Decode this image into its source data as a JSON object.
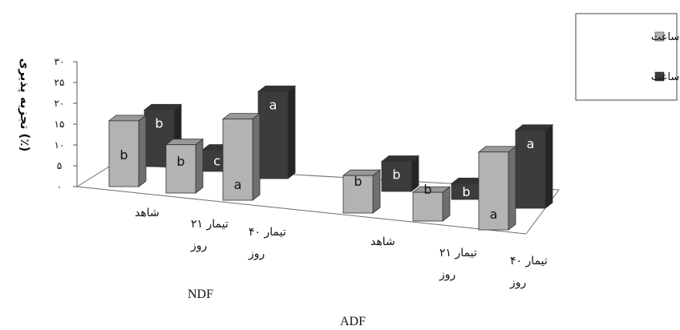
{
  "chart_data": {
    "type": "bar",
    "ylabel": "تجزیه پذیری (٪)",
    "ylim": [
      0,
      30
    ],
    "yticks": [
      "۰",
      "۵",
      "۱۰",
      "۱۵",
      "۲۰",
      "۲۵",
      "۳۰"
    ],
    "ytick_values": [
      0,
      5,
      10,
      15,
      20,
      25,
      30
    ],
    "groups": [
      "NDF",
      "ADF"
    ],
    "categories": [
      [
        "شاهد"
      ],
      [
        "تیمار ۲۱",
        "روز"
      ],
      [
        "تیمار ۴۰",
        "روز"
      ]
    ],
    "series": [
      {
        "name": "۴۸ ساعت",
        "color": "#b3b3b3",
        "values": [
          [
            15.8,
            11.6,
            19.5
          ],
          [
            9.0,
            6.9,
            18.7
          ]
        ],
        "labels": [
          [
            "b",
            "b",
            "a"
          ],
          [
            "b",
            "b",
            "a"
          ]
        ]
      },
      {
        "name": "۹۶ ساعت",
        "color": "#3c3c3c",
        "values": [
          [
            13.6,
            5.1,
            20.9
          ],
          [
            7.2,
            3.8,
            18.7
          ]
        ],
        "labels": [
          [
            "b",
            "c",
            "a"
          ],
          [
            "b",
            "b",
            "a"
          ]
        ]
      }
    ],
    "legend": "right",
    "grid": false
  }
}
